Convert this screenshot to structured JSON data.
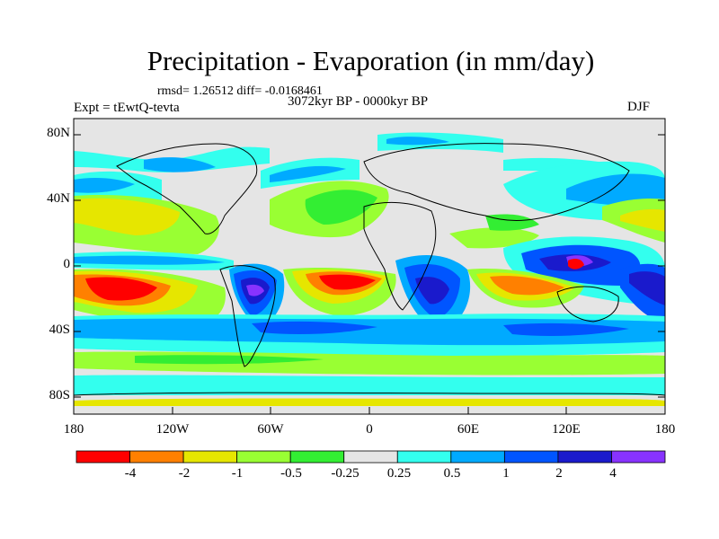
{
  "title": "Precipitation - Evaporation (in mm/day)",
  "stats": "rmsd= 1.26512 diff= -0.0168461",
  "experiment": "Expt = tEwtQ-tevta",
  "period": "3072kyr BP - 0000kyr BP",
  "season": "DJF",
  "y_ticks": [
    "80N",
    "40N",
    "0",
    "40S",
    "80S"
  ],
  "x_ticks": [
    "180",
    "120W",
    "60W",
    "0",
    "60E",
    "120E",
    "180"
  ],
  "colorbar": {
    "colors": [
      "#ff0000",
      "#ff8000",
      "#e6e600",
      "#99ff33",
      "#33ee33",
      "#e5e5e5",
      "#33ffee",
      "#00aaff",
      "#0055ff",
      "#1a1acc",
      "#8833ff"
    ],
    "labels": [
      "-4",
      "-2",
      "-1",
      "-0.5",
      "-0.25",
      "0.25",
      "0.5",
      "1",
      "2",
      "4"
    ]
  },
  "background_color": "#e5e5e5"
}
